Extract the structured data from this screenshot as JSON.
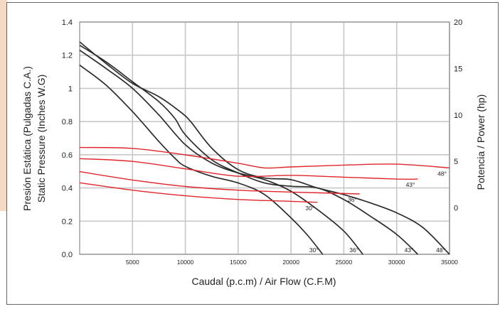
{
  "chart_data": {
    "type": "line",
    "xlabel": "Caudal (p.c.m) / Air Flow (C.F.M)",
    "ylabel_line1": "Presión Estática (Pulgadas C.A.)",
    "ylabel_line2": "Static Pressure (Inches W.G)",
    "y2label": "Potencia / Power (hp)",
    "xlim": [
      0,
      35000
    ],
    "ylim": [
      0,
      1.4
    ],
    "y2lim": [
      -5,
      20
    ],
    "x_ticks": [
      "5000",
      "10000",
      "15000",
      "20000",
      "25000",
      "30000",
      "35000"
    ],
    "y_ticks": [
      "0.0",
      "0.2",
      "0.4",
      "0.6",
      "0.8",
      "1",
      "1.2",
      "1.4"
    ],
    "y2_ticks": [
      "0",
      "5",
      "10",
      "15",
      "20"
    ],
    "grid": true,
    "colors": {
      "pressure": "#2b2b2b",
      "power": "#e0262b"
    },
    "pressure_series": [
      {
        "label": "30°",
        "points": [
          [
            0,
            1.14
          ],
          [
            2500,
            1.02
          ],
          [
            5000,
            0.86
          ],
          [
            7500,
            0.68
          ],
          [
            9000,
            0.58
          ],
          [
            10000,
            0.53
          ],
          [
            12500,
            0.47
          ],
          [
            15000,
            0.43
          ],
          [
            17500,
            0.36
          ],
          [
            20000,
            0.22
          ],
          [
            21500,
            0.12
          ],
          [
            23000,
            0.0
          ]
        ]
      },
      {
        "label": "36°",
        "points": [
          [
            0,
            1.23
          ],
          [
            2500,
            1.12
          ],
          [
            5000,
            1.0
          ],
          [
            7500,
            0.84
          ],
          [
            10000,
            0.66
          ],
          [
            12500,
            0.55
          ],
          [
            15000,
            0.49
          ],
          [
            17500,
            0.45
          ],
          [
            20000,
            0.38
          ],
          [
            22500,
            0.27
          ],
          [
            25000,
            0.14
          ],
          [
            26800,
            0.0
          ]
        ]
      },
      {
        "label": "43°",
        "points": [
          [
            0,
            1.26
          ],
          [
            2500,
            1.16
          ],
          [
            5000,
            1.04
          ],
          [
            7500,
            0.92
          ],
          [
            9000,
            0.82
          ],
          [
            10000,
            0.72
          ],
          [
            12500,
            0.57
          ],
          [
            15000,
            0.49
          ],
          [
            17500,
            0.43
          ],
          [
            20000,
            0.41
          ],
          [
            22500,
            0.4
          ],
          [
            25000,
            0.33
          ],
          [
            27500,
            0.23
          ],
          [
            30000,
            0.12
          ],
          [
            32000,
            0.0
          ]
        ]
      },
      {
        "label": "48°",
        "points": [
          [
            0,
            1.28
          ],
          [
            2500,
            1.15
          ],
          [
            5000,
            1.03
          ],
          [
            7500,
            0.95
          ],
          [
            9500,
            0.86
          ],
          [
            10500,
            0.8
          ],
          [
            12500,
            0.64
          ],
          [
            15000,
            0.51
          ],
          [
            17500,
            0.46
          ],
          [
            20000,
            0.45
          ],
          [
            22500,
            0.4
          ],
          [
            25000,
            0.36
          ],
          [
            27500,
            0.31
          ],
          [
            30000,
            0.25
          ],
          [
            32500,
            0.16
          ],
          [
            35000,
            0.0
          ]
        ]
      }
    ],
    "power_series": [
      {
        "label": "30°",
        "points": [
          [
            0,
            2.7
          ],
          [
            5000,
            1.9
          ],
          [
            10000,
            1.3
          ],
          [
            15000,
            0.9
          ],
          [
            20000,
            0.7
          ],
          [
            22500,
            0.6
          ]
        ]
      },
      {
        "label": "36°",
        "points": [
          [
            0,
            3.9
          ],
          [
            5000,
            3.0
          ],
          [
            10000,
            2.3
          ],
          [
            15000,
            1.9
          ],
          [
            20000,
            1.7
          ],
          [
            26500,
            1.5
          ]
        ]
      },
      {
        "label": "43°",
        "points": [
          [
            0,
            5.3
          ],
          [
            5000,
            5.0
          ],
          [
            10000,
            4.2
          ],
          [
            15000,
            3.4
          ],
          [
            20000,
            3.5
          ],
          [
            25000,
            3.3
          ],
          [
            30000,
            3.1
          ],
          [
            32000,
            3.1
          ]
        ]
      },
      {
        "label": "48°",
        "points": [
          [
            0,
            6.5
          ],
          [
            5000,
            6.4
          ],
          [
            10000,
            5.7
          ],
          [
            15000,
            4.8
          ],
          [
            17500,
            4.3
          ],
          [
            20000,
            4.4
          ],
          [
            25000,
            4.6
          ],
          [
            30000,
            4.7
          ],
          [
            35000,
            4.3
          ]
        ]
      }
    ]
  }
}
